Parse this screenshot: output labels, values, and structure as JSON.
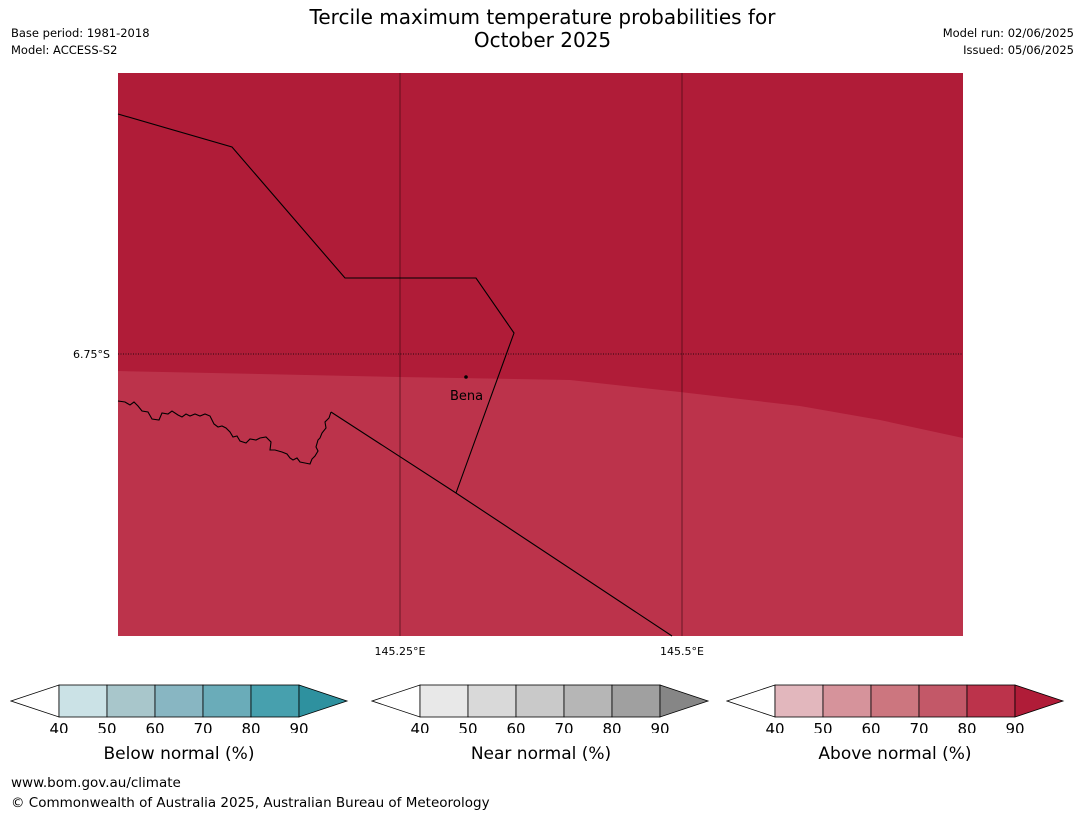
{
  "header": {
    "title_line1": "Tercile maximum temperature probabilities for",
    "title_line2": "October 2025",
    "base_period": "Base period: 1981-2018",
    "model": "Model: ACCESS-S2",
    "model_run": "Model run: 02/06/2025",
    "issued": "Issued: 05/06/2025"
  },
  "map": {
    "lat_label": "6.75°S",
    "lon_labels": [
      "145.25°E",
      "145.5°E"
    ],
    "place_name": "Bena",
    "upper_region_color": "#b01c38",
    "lower_region_color": "#bc334b"
  },
  "colorbars": [
    {
      "name": "below-normal",
      "label": "Below normal (%)",
      "ticks": [
        "40",
        "50",
        "60",
        "70",
        "80",
        "90"
      ],
      "colors": [
        "#ffffff",
        "#cbe2e6",
        "#a8c6cb",
        "#88b6c2",
        "#6aacb9",
        "#47a0ae",
        "#2e919f"
      ]
    },
    {
      "name": "near-normal",
      "label": "Near normal (%)",
      "ticks": [
        "40",
        "50",
        "60",
        "70",
        "80",
        "90"
      ],
      "colors": [
        "#ffffff",
        "#e8e8e8",
        "#d9d9d9",
        "#c9c9c9",
        "#b6b6b6",
        "#a0a0a0",
        "#868686"
      ]
    },
    {
      "name": "above-normal",
      "label": "Above normal (%)",
      "ticks": [
        "40",
        "50",
        "60",
        "70",
        "80",
        "90"
      ],
      "colors": [
        "#ffffff",
        "#e2b7bd",
        "#d6939b",
        "#cc767f",
        "#c35868",
        "#bc334b",
        "#b01c38"
      ]
    }
  ],
  "footer": {
    "url": "www.bom.gov.au/climate",
    "copyright": "© Commonwealth of Australia 2025, Australian Bureau of Meteorology"
  }
}
